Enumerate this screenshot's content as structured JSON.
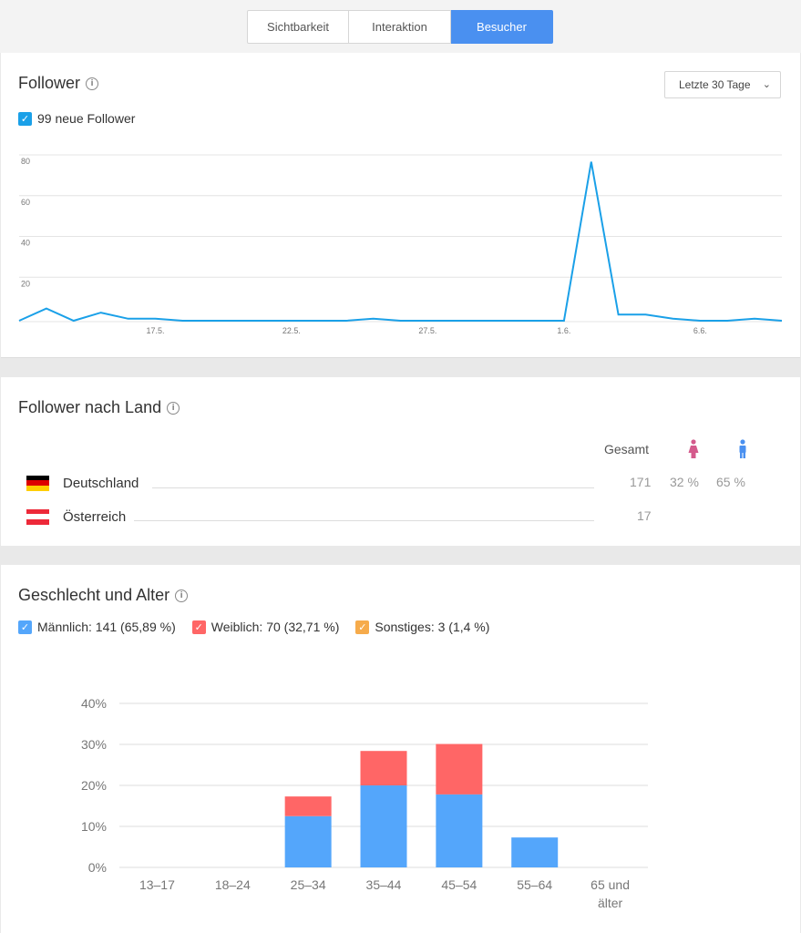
{
  "tabs": [
    {
      "label": "Sichtbarkeit"
    },
    {
      "label": "Interaktion"
    },
    {
      "label": "Besucher"
    }
  ],
  "colors": {
    "accent": "#4a90f0",
    "line": "#1aa0e8",
    "male": "#54a6fb",
    "female": "#ff6666",
    "other": "#f6ab4b"
  },
  "followers": {
    "title": "Follower",
    "info_icon": "info-icon",
    "range_label": "Letzte 30 Tage",
    "legend": "99 neue Follower",
    "chart_data": {
      "type": "line",
      "title": "",
      "y_ticks": [
        "80",
        "60",
        "40",
        "20"
      ],
      "x_ticks": [
        "17.5.",
        "22.5.",
        "27.5.",
        "1.6.",
        "6.6."
      ],
      "ylim": [
        0,
        80
      ],
      "grid": true,
      "series": [
        {
          "values": [
            0,
            6,
            0,
            4,
            1,
            1,
            0,
            0,
            0,
            0,
            0,
            0,
            0,
            1,
            0,
            0,
            0,
            0,
            0,
            0,
            0,
            78,
            3,
            3,
            1,
            0,
            0,
            1,
            0
          ]
        }
      ]
    }
  },
  "countries": {
    "title": "Follower nach Land",
    "header_total": "Gesamt",
    "female_icon": "female-icon",
    "male_icon": "male-icon",
    "rows": [
      {
        "name": "Deutschland",
        "total": "171",
        "female": "32 %",
        "male": "65 %",
        "flag": [
          "#000000",
          "#dd0000",
          "#ffce00"
        ]
      },
      {
        "name": "Österreich",
        "total": "17",
        "female": "",
        "male": "",
        "flag": [
          "#ed2939",
          "#ffffff",
          "#ed2939"
        ]
      }
    ]
  },
  "gender_age": {
    "title": "Geschlecht und Alter",
    "legend": [
      {
        "label": "Männlich: 141 (65,89 %)",
        "color": "#54a6fb"
      },
      {
        "label": "Weiblich: 70 (32,71 %)",
        "color": "#ff6666"
      },
      {
        "label": "Sonstiges: 3 (1,4 %)",
        "color": "#f6ab4b"
      }
    ],
    "chart_data": {
      "type": "bar",
      "stacked": true,
      "categories": [
        "13–17",
        "18–24",
        "25–34",
        "35–44",
        "45–54",
        "55–64",
        "65 und älter"
      ],
      "y_ticks": [
        "40%",
        "30%",
        "20%",
        "10%",
        "0%"
      ],
      "ylim": [
        0,
        40
      ],
      "grid": true,
      "series": [
        {
          "name": "Männlich",
          "values": [
            0,
            0,
            12.5,
            20,
            17.8,
            7.3,
            0
          ]
        },
        {
          "name": "Weiblich",
          "values": [
            0,
            0,
            4.8,
            8.4,
            12.3,
            0,
            0
          ]
        }
      ]
    }
  }
}
